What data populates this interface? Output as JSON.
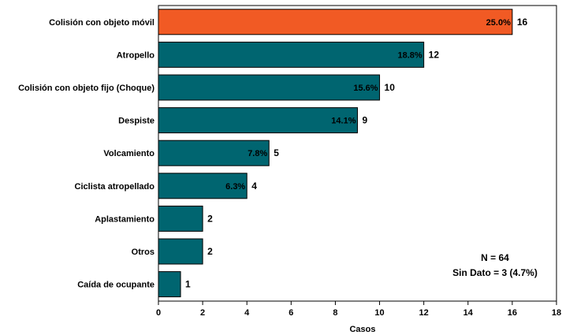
{
  "chart_data": {
    "type": "bar",
    "orientation": "horizontal",
    "categories": [
      "Colisión con objeto móvil",
      "Atropello",
      "Colisión con objeto fijo (Choque)",
      "Despiste",
      "Volcamiento",
      "Ciclista atropellado",
      "Aplastamiento",
      "Otros",
      "Caída de ocupante"
    ],
    "values": [
      16,
      12,
      10,
      9,
      5,
      4,
      2,
      2,
      1
    ],
    "value_labels": [
      "16",
      "12",
      "10",
      "9",
      "5",
      "4",
      "2",
      "2",
      "1"
    ],
    "percent_labels": [
      "25.0%",
      "18.8%",
      "15.6%",
      "14.1%",
      "7.8%",
      "6.3%",
      "",
      "",
      ""
    ],
    "xlabel": "Casos",
    "ylabel": "",
    "xlim": [
      0,
      18
    ],
    "xticks": [
      "0",
      "2",
      "4",
      "6",
      "8",
      "10",
      "12",
      "14",
      "16",
      "18"
    ],
    "grid": false,
    "colors": {
      "highlight": "#f15a24",
      "default": "#006570",
      "edge": "#000000"
    },
    "highlight_index": 0,
    "annotations": [
      "N = 64",
      "Sin Dato = 3 (4.7%)"
    ]
  }
}
